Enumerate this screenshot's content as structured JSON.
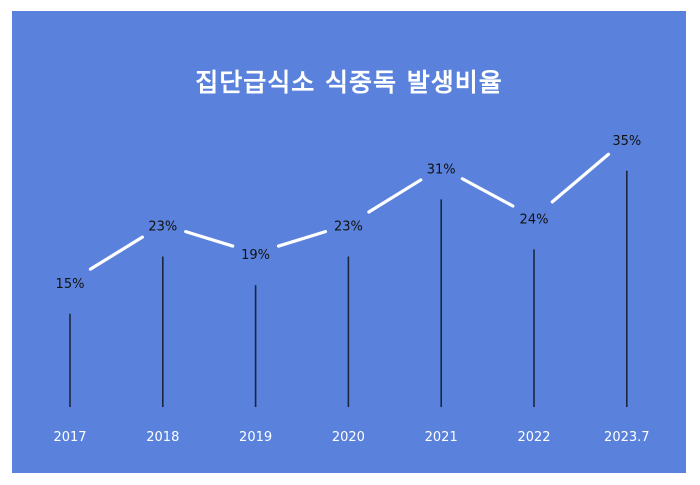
{
  "chart_data": {
    "type": "line",
    "title": "집단급식소 식중독 발생비율",
    "categories": [
      "2017",
      "2018",
      "2019",
      "2020",
      "2021",
      "2022",
      "2023.7"
    ],
    "values": [
      15,
      23,
      19,
      23,
      31,
      24,
      35
    ],
    "data_labels": [
      "15%",
      "23%",
      "19%",
      "23%",
      "31%",
      "24%",
      "35%"
    ],
    "ylim": [
      0,
      40
    ],
    "grid": false,
    "legend": "none",
    "colors": {
      "background": "#5a82dc",
      "line": "#ffffff",
      "drop_lines": "#1b2540",
      "text": "#ffffff",
      "label_text": "#111111",
      "axis_text": "#ffffff"
    }
  }
}
